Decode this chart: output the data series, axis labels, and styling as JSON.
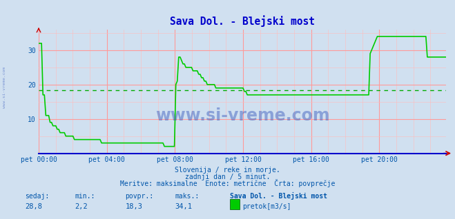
{
  "title": "Sava Dol. - Blejski most",
  "title_color": "#0000cc",
  "bg_color": "#d0e0f0",
  "plot_bg_color": "#d0e0f0",
  "line_color": "#00cc00",
  "avg_line_color": "#00aa00",
  "avg_value": 18.3,
  "x_tick_labels": [
    "pet 00:00",
    "pet 04:00",
    "pet 08:00",
    "pet 12:00",
    "pet 16:00",
    "pet 20:00"
  ],
  "x_tick_positions": [
    0,
    48,
    96,
    144,
    192,
    240
  ],
  "y_ticks": [
    10,
    20,
    30
  ],
  "ylim": [
    0,
    36
  ],
  "xlim": [
    0,
    287
  ],
  "grid_color_major": "#ff9999",
  "grid_color_minor": "#ffcccc",
  "watermark": "www.si-vreme.com",
  "subtitle1": "Slovenija / reke in morje.",
  "subtitle2": "zadnji dan / 5 minut.",
  "subtitle3": "Meritve: maksimalne  Enote: metrične  Črta: povprečje",
  "footer_labels": [
    "sedaj:",
    "min.:",
    "povpr.:",
    "maks.:",
    "Sava Dol. - Blejski most"
  ],
  "footer_values": [
    "28,8",
    "2,2",
    "18,3",
    "34,1"
  ],
  "legend_label": "pretok[m3/s]",
  "sidebar_text": "www.si-vreme.com",
  "data_y": [
    32,
    32,
    32,
    17,
    17,
    11,
    11,
    11,
    9,
    9,
    8,
    8,
    8,
    7,
    7,
    6,
    6,
    6,
    6,
    5,
    5,
    5,
    5,
    5,
    5,
    4,
    4,
    4,
    4,
    4,
    4,
    4,
    4,
    4,
    4,
    4,
    4,
    4,
    4,
    4,
    4,
    4,
    4,
    4,
    3,
    3,
    3,
    3,
    3,
    3,
    3,
    3,
    3,
    3,
    3,
    3,
    3,
    3,
    3,
    3,
    3,
    3,
    3,
    3,
    3,
    3,
    3,
    3,
    3,
    3,
    3,
    3,
    3,
    3,
    3,
    3,
    3,
    3,
    3,
    3,
    3,
    3,
    3,
    3,
    3,
    3,
    3,
    3,
    2,
    2,
    2,
    2,
    2,
    2,
    2,
    2,
    20,
    21,
    28,
    28,
    27,
    26,
    26,
    25,
    25,
    25,
    25,
    25,
    24,
    24,
    24,
    24,
    23,
    23,
    22,
    22,
    21,
    21,
    20,
    20,
    20,
    20,
    20,
    20,
    19,
    19,
    19,
    19,
    19,
    19,
    19,
    19,
    19,
    19,
    19,
    19,
    19,
    19,
    19,
    19,
    19,
    19,
    19,
    19,
    18,
    18,
    17,
    17,
    17,
    17,
    17,
    17,
    17,
    17,
    17,
    17,
    17,
    17,
    17,
    17,
    17,
    17,
    17,
    17,
    17,
    17,
    17,
    17,
    17,
    17,
    17,
    17,
    17,
    17,
    17,
    17,
    17,
    17,
    17,
    17,
    17,
    17,
    17,
    17,
    17,
    17,
    17,
    17,
    17,
    17,
    17,
    17,
    17,
    17,
    17,
    17,
    17,
    17,
    17,
    17,
    17,
    17,
    17,
    17,
    17,
    17,
    17,
    17,
    17,
    17,
    17,
    17,
    17,
    17,
    17,
    17,
    17,
    17,
    17,
    17,
    17,
    17,
    17,
    17,
    17,
    17,
    17,
    17,
    17,
    17,
    17,
    17,
    29,
    30,
    31,
    32,
    33,
    34,
    34,
    34,
    34,
    34,
    34,
    34,
    34,
    34,
    34,
    34,
    34,
    34,
    34,
    34,
    34,
    34,
    34,
    34,
    34,
    34,
    34,
    34,
    34,
    34,
    34,
    34,
    34,
    34,
    34,
    34,
    34,
    34,
    34,
    34,
    28,
    28,
    28,
    28,
    28,
    28,
    28,
    28,
    28,
    28,
    28,
    28,
    28,
    28,
    28
  ]
}
